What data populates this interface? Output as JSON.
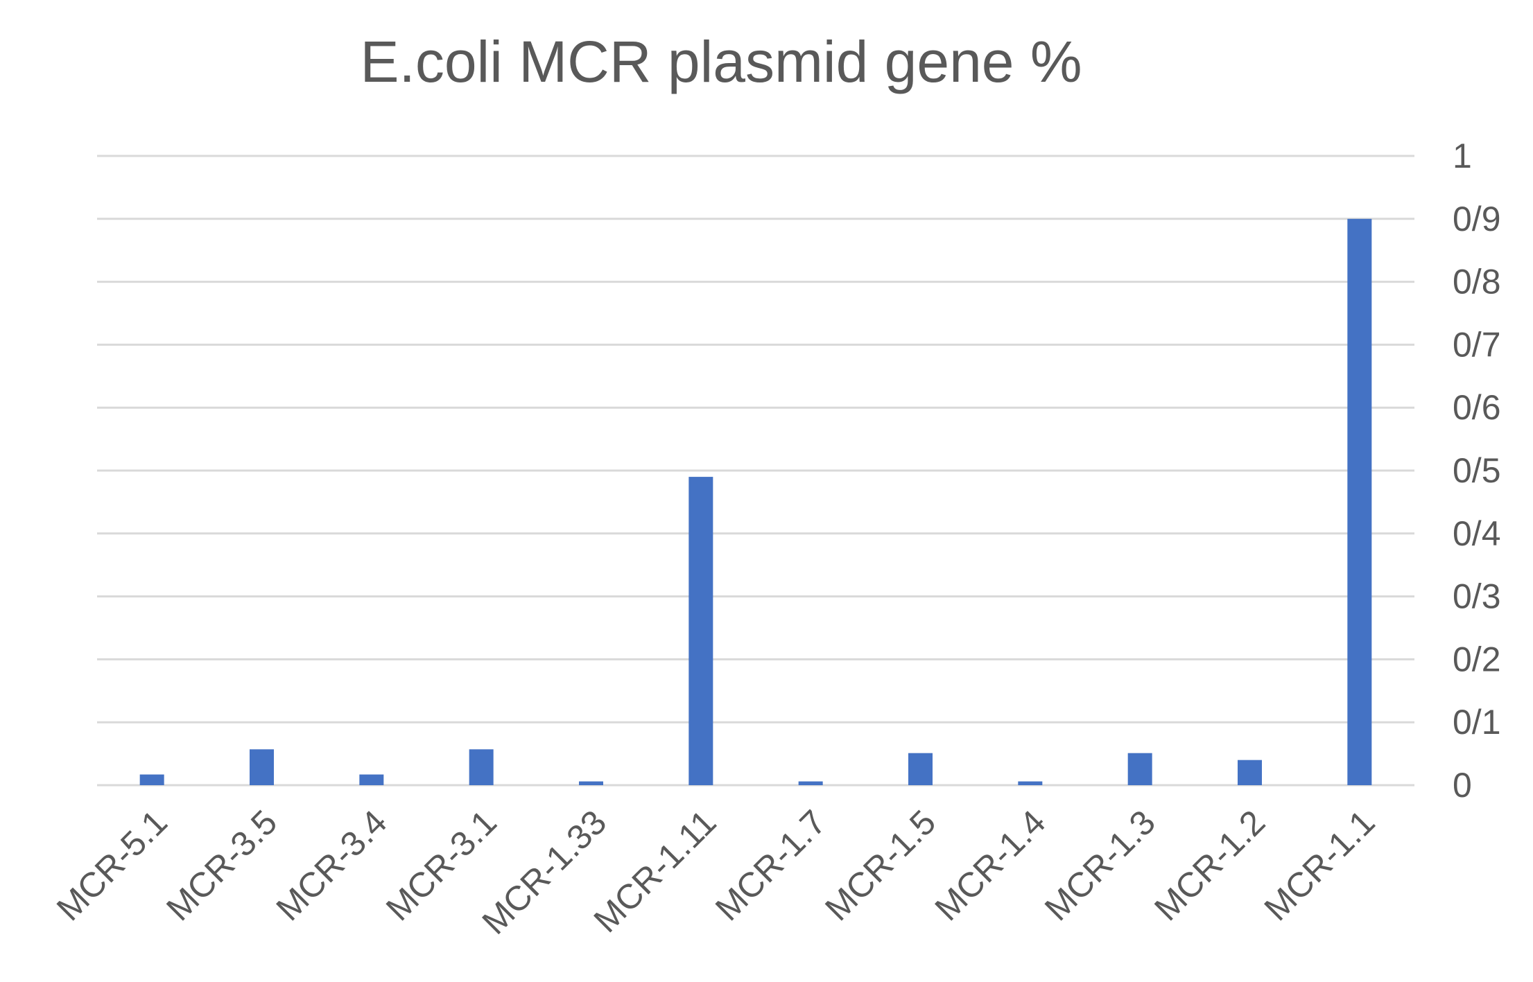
{
  "chart_data": {
    "type": "bar",
    "title": "E.coli MCR plasmid gene %",
    "xlabel": "",
    "ylabel": "",
    "categories": [
      "MCR-5.1",
      "MCR-3.5",
      "MCR-3.4",
      "MCR-3.1",
      "MCR-1.33",
      "MCR-1.11",
      "MCR-1.7",
      "MCR-1.5",
      "MCR-1.4",
      "MCR-1.3",
      "MCR-1.2",
      "MCR-1.1"
    ],
    "values": [
      0.017,
      0.057,
      0.017,
      0.057,
      0.006,
      0.49,
      0.006,
      0.051,
      0.006,
      0.051,
      0.04,
      0.9
    ],
    "ylim": [
      0,
      1
    ],
    "yticks": [
      0,
      0.1,
      0.2,
      0.3,
      0.4,
      0.5,
      0.6,
      0.7,
      0.8,
      0.9,
      1
    ],
    "ytick_labels": [
      "0",
      "0/1",
      "0/2",
      "0/3",
      "0/4",
      "0/5",
      "0/6",
      "0/7",
      "0/8",
      "0/9",
      "1"
    ],
    "y_axis_side": "right",
    "grid": true,
    "legend": "none",
    "colors": {
      "bar": "#4472c4",
      "grid": "#d9d9d9",
      "text": "#595959"
    }
  }
}
